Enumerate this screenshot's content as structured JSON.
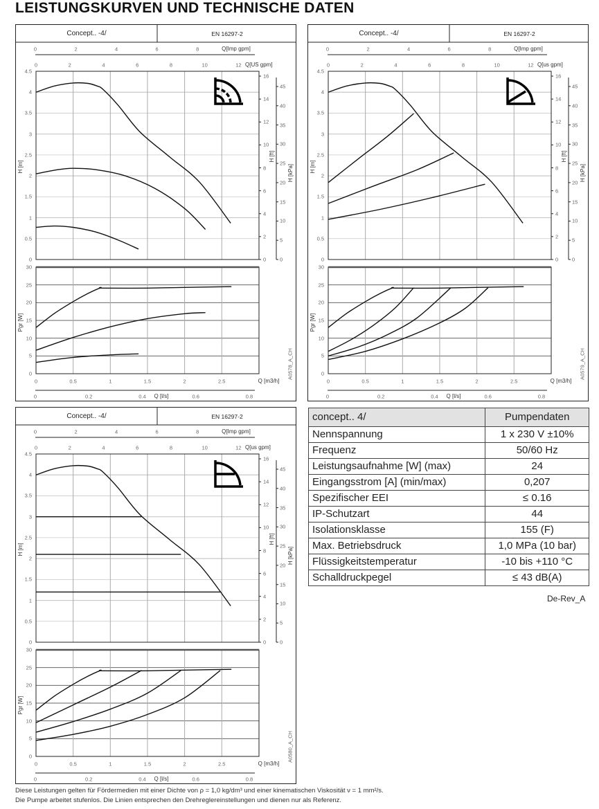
{
  "page_title": "LEISTUNGSKURVEN UND TECHNISCHE DATEN",
  "axes_common": {
    "imp_label": "Q[Imp gpm]",
    "imp_ticks": [
      0,
      2,
      4,
      6,
      8
    ],
    "us_ticks": [
      0,
      2,
      4,
      6,
      8,
      10,
      12
    ],
    "h_label": "H [m]",
    "h_ticks": [
      0,
      0.5,
      1,
      1.5,
      2,
      2.5,
      3,
      3.5,
      4,
      4.5
    ],
    "ft_label": "H [ft]",
    "ft_ticks": [
      0,
      2,
      4,
      6,
      8,
      10,
      12,
      14,
      16
    ],
    "kpa_label": "H [kPa]",
    "kpa_ticks": [
      0,
      5,
      10,
      15,
      20,
      25,
      30,
      35,
      40,
      45
    ],
    "p_label": "Pgr [W]",
    "p_ticks": [
      0,
      5,
      10,
      15,
      20,
      25,
      30
    ],
    "q_label": "Q [m3/h]",
    "q_ticks": [
      0,
      0.5,
      1,
      1.5,
      2,
      2.5
    ],
    "ls_label": "Q [l/s]",
    "ls_ticks": [
      0,
      0.2,
      0.4,
      0.6,
      0.8
    ]
  },
  "chart_data": [
    {
      "type": "line",
      "title": "Concept.. -4/",
      "standard": "EN 16297-2",
      "us_label": "Q[US gpm]",
      "code": "A0578_A_CH",
      "mode_icon": "radiator-dial-icon",
      "xlim": [
        0,
        3
      ],
      "h_ylim": [
        0,
        4.5
      ],
      "p_ylim": [
        0,
        30
      ],
      "head_series": [
        {
          "name": "max",
          "points": [
            [
              0,
              4.0
            ],
            [
              0.25,
              4.15
            ],
            [
              0.5,
              4.22
            ],
            [
              0.7,
              4.21
            ],
            [
              0.82,
              4.15
            ],
            [
              0.9,
              4.07
            ],
            [
              1.1,
              3.7
            ],
            [
              1.4,
              3.05
            ],
            [
              1.8,
              2.45
            ],
            [
              2.2,
              1.85
            ],
            [
              2.62,
              0.87
            ]
          ]
        },
        {
          "name": "mid",
          "points": [
            [
              0,
              2.05
            ],
            [
              0.3,
              2.15
            ],
            [
              0.5,
              2.18
            ],
            [
              0.8,
              2.15
            ],
            [
              1.2,
              2.0
            ],
            [
              1.6,
              1.7
            ],
            [
              2.0,
              1.22
            ],
            [
              2.28,
              0.72
            ]
          ]
        },
        {
          "name": "min",
          "points": [
            [
              0,
              0.77
            ],
            [
              0.25,
              0.8
            ],
            [
              0.5,
              0.77
            ],
            [
              0.8,
              0.66
            ],
            [
              1.1,
              0.47
            ],
            [
              1.38,
              0.25
            ]
          ]
        }
      ],
      "power_series": [
        {
          "name": "max",
          "points": [
            [
              0,
              13
            ],
            [
              0.25,
              17
            ],
            [
              0.5,
              20.3
            ],
            [
              0.7,
              22.6
            ],
            [
              0.87,
              24.2
            ],
            [
              0.9,
              24.1
            ],
            [
              1.5,
              24.1
            ],
            [
              2.0,
              24.3
            ],
            [
              2.63,
              24.5
            ]
          ]
        },
        {
          "name": "mid",
          "points": [
            [
              0,
              6.6
            ],
            [
              0.5,
              10.2
            ],
            [
              1.0,
              13.2
            ],
            [
              1.5,
              15.5
            ],
            [
              2.0,
              16.9
            ],
            [
              2.28,
              17.2
            ]
          ]
        },
        {
          "name": "min",
          "points": [
            [
              0,
              3.2
            ],
            [
              0.5,
              4.6
            ],
            [
              1.0,
              5.3
            ],
            [
              1.38,
              5.6
            ]
          ]
        }
      ]
    },
    {
      "type": "line",
      "title": "Concept.. -4/",
      "standard": "EN 16297-2",
      "us_label": "Q[us gpm]",
      "code": "A0579_A_CH",
      "mode_icon": "proportional-pressure-icon",
      "xlim": [
        0,
        3
      ],
      "h_ylim": [
        0,
        4.5
      ],
      "p_ylim": [
        0,
        30
      ],
      "head_series": [
        {
          "name": "max",
          "points": [
            [
              0,
              4.0
            ],
            [
              0.25,
              4.15
            ],
            [
              0.5,
              4.22
            ],
            [
              0.7,
              4.21
            ],
            [
              0.82,
              4.15
            ],
            [
              0.9,
              4.07
            ],
            [
              1.1,
              3.7
            ],
            [
              1.4,
              3.05
            ],
            [
              1.8,
              2.45
            ],
            [
              2.2,
              1.85
            ],
            [
              2.62,
              0.87
            ]
          ]
        },
        {
          "name": "pp-high",
          "points": [
            [
              0,
              1.84
            ],
            [
              0.4,
              2.4
            ],
            [
              0.8,
              2.95
            ],
            [
              1.15,
              3.49
            ]
          ]
        },
        {
          "name": "pp-mid",
          "points": [
            [
              0,
              1.34
            ],
            [
              0.6,
              1.75
            ],
            [
              1.2,
              2.15
            ],
            [
              1.69,
              2.55
            ]
          ]
        },
        {
          "name": "pp-low",
          "points": [
            [
              0,
              0.96
            ],
            [
              0.7,
              1.2
            ],
            [
              1.4,
              1.48
            ],
            [
              2.11,
              1.8
            ]
          ]
        }
      ],
      "power_series": [
        {
          "name": "max",
          "points": [
            [
              0,
              13
            ],
            [
              0.25,
              17
            ],
            [
              0.5,
              20.3
            ],
            [
              0.7,
              22.6
            ],
            [
              0.87,
              24.2
            ],
            [
              0.9,
              24.1
            ],
            [
              1.5,
              24.1
            ],
            [
              2.0,
              24.3
            ],
            [
              2.63,
              24.5
            ]
          ]
        },
        {
          "name": "pp-high",
          "points": [
            [
              0,
              6.3
            ],
            [
              0.3,
              9.5
            ],
            [
              0.6,
              13.5
            ],
            [
              0.9,
              18.5
            ],
            [
              1.15,
              24.2
            ]
          ]
        },
        {
          "name": "pp-mid",
          "points": [
            [
              0,
              5
            ],
            [
              0.4,
              7.5
            ],
            [
              0.8,
              11
            ],
            [
              1.2,
              15.8
            ],
            [
              1.65,
              24.2
            ]
          ]
        },
        {
          "name": "pp-low",
          "points": [
            [
              0,
              4
            ],
            [
              0.5,
              6.3
            ],
            [
              1.0,
              9.8
            ],
            [
              1.5,
              14.3
            ],
            [
              1.85,
              18.5
            ],
            [
              2.15,
              24.2
            ]
          ]
        }
      ]
    },
    {
      "type": "line",
      "title": "Concept.. -4/",
      "standard": "EN 16297-2",
      "us_label": "Q[us gpm]",
      "code": "A0580_A_CH",
      "mode_icon": "constant-pressure-icon",
      "xlim": [
        0,
        3
      ],
      "h_ylim": [
        0,
        4.5
      ],
      "p_ylim": [
        0,
        30
      ],
      "head_series": [
        {
          "name": "max",
          "points": [
            [
              0,
              4.0
            ],
            [
              0.25,
              4.15
            ],
            [
              0.5,
              4.22
            ],
            [
              0.7,
              4.21
            ],
            [
              0.82,
              4.15
            ],
            [
              0.9,
              4.07
            ],
            [
              1.1,
              3.7
            ],
            [
              1.4,
              3.05
            ],
            [
              1.8,
              2.45
            ],
            [
              2.2,
              1.85
            ],
            [
              2.62,
              0.87
            ]
          ]
        },
        {
          "name": "cp-high",
          "points": [
            [
              0,
              3.0
            ],
            [
              1.42,
              3.0
            ]
          ]
        },
        {
          "name": "cp-mid",
          "points": [
            [
              0,
              2.1
            ],
            [
              1.95,
              2.1
            ]
          ]
        },
        {
          "name": "cp-low",
          "points": [
            [
              0,
              1.2
            ],
            [
              2.48,
              1.2
            ]
          ]
        }
      ],
      "power_series": [
        {
          "name": "max",
          "points": [
            [
              0,
              13
            ],
            [
              0.25,
              17
            ],
            [
              0.5,
              20.3
            ],
            [
              0.7,
              22.6
            ],
            [
              0.87,
              24.2
            ],
            [
              0.9,
              24.1
            ],
            [
              1.5,
              24.1
            ],
            [
              2.0,
              24.3
            ],
            [
              2.63,
              24.5
            ]
          ]
        },
        {
          "name": "cp-high",
          "points": [
            [
              0,
              9.5
            ],
            [
              0.5,
              14.5
            ],
            [
              1.0,
              19.5
            ],
            [
              1.42,
              24.2
            ]
          ]
        },
        {
          "name": "cp-mid",
          "points": [
            [
              0,
              6.8
            ],
            [
              0.5,
              9.8
            ],
            [
              1.0,
              13.3
            ],
            [
              1.5,
              17.8
            ],
            [
              1.95,
              24.2
            ]
          ]
        },
        {
          "name": "cp-low",
          "points": [
            [
              0,
              4.5
            ],
            [
              0.5,
              6.2
            ],
            [
              1.0,
              8.5
            ],
            [
              1.5,
              11.8
            ],
            [
              2.0,
              16.5
            ],
            [
              2.48,
              24.2
            ]
          ]
        }
      ]
    }
  ],
  "table": {
    "header": [
      "concept.. 4/",
      "Pumpendaten"
    ],
    "rows": [
      [
        "Nennspannung",
        "1 x 230 V ±10%"
      ],
      [
        "Frequenz",
        "50/60 Hz"
      ],
      [
        "Leistungsaufnahme [W] (max)",
        "24"
      ],
      [
        "Eingangsstrom [A] (min/max)",
        "0,207"
      ],
      [
        "Spezifischer EEI",
        "≤ 0.16"
      ],
      [
        "IP-Schutzart",
        "44"
      ],
      [
        "Isolationsklasse",
        "155 (F)"
      ],
      [
        "Max. Betriebsdruck",
        "1,0 MPa (10 bar)"
      ],
      [
        "Flüssigkeitstemperatur",
        "-10 bis +110 °C"
      ],
      [
        "Schalldruckpegel",
        "≤ 43 dB(A)"
      ]
    ]
  },
  "revision": "De-Rev_A",
  "footnote": [
    "Diese Leistungen gelten für Fördermedien mit einer Dichte von ρ = 1,0 kg/dm³ und einer kinematischen Viskosität ν = 1 mm²/s.",
    "Die Pumpe arbeitet stufenlos. Die Linien entsprechen den Drehreglereinstellungen und dienen nur als Referenz."
  ]
}
